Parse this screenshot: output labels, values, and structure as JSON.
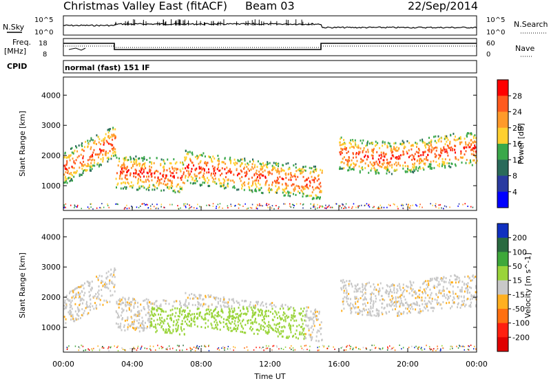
{
  "header": {
    "title": "Christmas Valley East (fitACF)",
    "beam": "Beam 03",
    "date": "22/Sep/2014"
  },
  "panels": {
    "nsky": {
      "left_label": "N.Sky",
      "right_label": "N.Search",
      "left_ticks": [
        "10^5",
        "10^0"
      ],
      "right_ticks": [
        "10^5",
        "10^0"
      ]
    },
    "freq": {
      "left_label_1": "Freq.",
      "left_label_2": "[MHz]",
      "right_label": "Nave",
      "left_ticks": [
        "18",
        "8"
      ],
      "right_ticks": [
        "60",
        "0"
      ]
    },
    "cpid": {
      "label": "CPID",
      "text": "normal (fast) 151 IF"
    }
  },
  "chart_data": [
    {
      "type": "heatmap",
      "name_on_colorbar": "Power [dB]",
      "ylabel": "Slant Range [km]",
      "yticks": [
        1000,
        2000,
        3000,
        4000
      ],
      "ylim": [
        180,
        4600
      ],
      "x_tick_labels": [
        "00:00",
        "04:00",
        "08:00",
        "12:00",
        "16:00",
        "20:00",
        "00:00"
      ],
      "xlim_hours": [
        0,
        24
      ],
      "colorbar": {
        "ticks": [
          "28",
          "24",
          "20",
          "16",
          "12",
          "8",
          "4"
        ],
        "colors": [
          "#ff0000",
          "#ff5a1e",
          "#ff9a2a",
          "#ffd030",
          "#3aa84a",
          "#2a6a5a",
          "#2a3aa0",
          "#0000ff"
        ]
      },
      "features": [
        {
          "from_hour": 0.0,
          "to_hour": 2.9,
          "center_range_km": [
            1600,
            1800,
            2100,
            2400,
            2700,
            2500
          ]
        },
        {
          "from_hour": 3.0,
          "to_hour": 15.0,
          "center_range_km": [
            1600,
            1550,
            1400,
            1300,
            1200,
            1100
          ]
        },
        {
          "from_hour": 16.0,
          "to_hour": 24.0,
          "center_range_km": [
            2200,
            2100,
            1900,
            1800,
            1900,
            2000
          ]
        }
      ]
    },
    {
      "type": "heatmap",
      "name_on_colorbar": "Velocity [m s^-1]",
      "ylabel": "Slant Range [km]",
      "yticks": [
        1000,
        2000,
        3000,
        4000
      ],
      "ylim": [
        180,
        4600
      ],
      "x_tick_labels": [
        "00:00",
        "04:00",
        "08:00",
        "12:00",
        "16:00",
        "20:00",
        "00:00"
      ],
      "xlabel": "Time UT",
      "xlim_hours": [
        0,
        24
      ],
      "colorbar": {
        "ticks": [
          "200",
          "100",
          "50",
          "15",
          "-15",
          "-50",
          "-100",
          "-200"
        ],
        "colors": [
          "#1030c0",
          "#2a6a40",
          "#3ea83a",
          "#9ad43a",
          "#c8c8c8",
          "#ffb020",
          "#ff7010",
          "#ff2010",
          "#e00000"
        ]
      }
    }
  ]
}
